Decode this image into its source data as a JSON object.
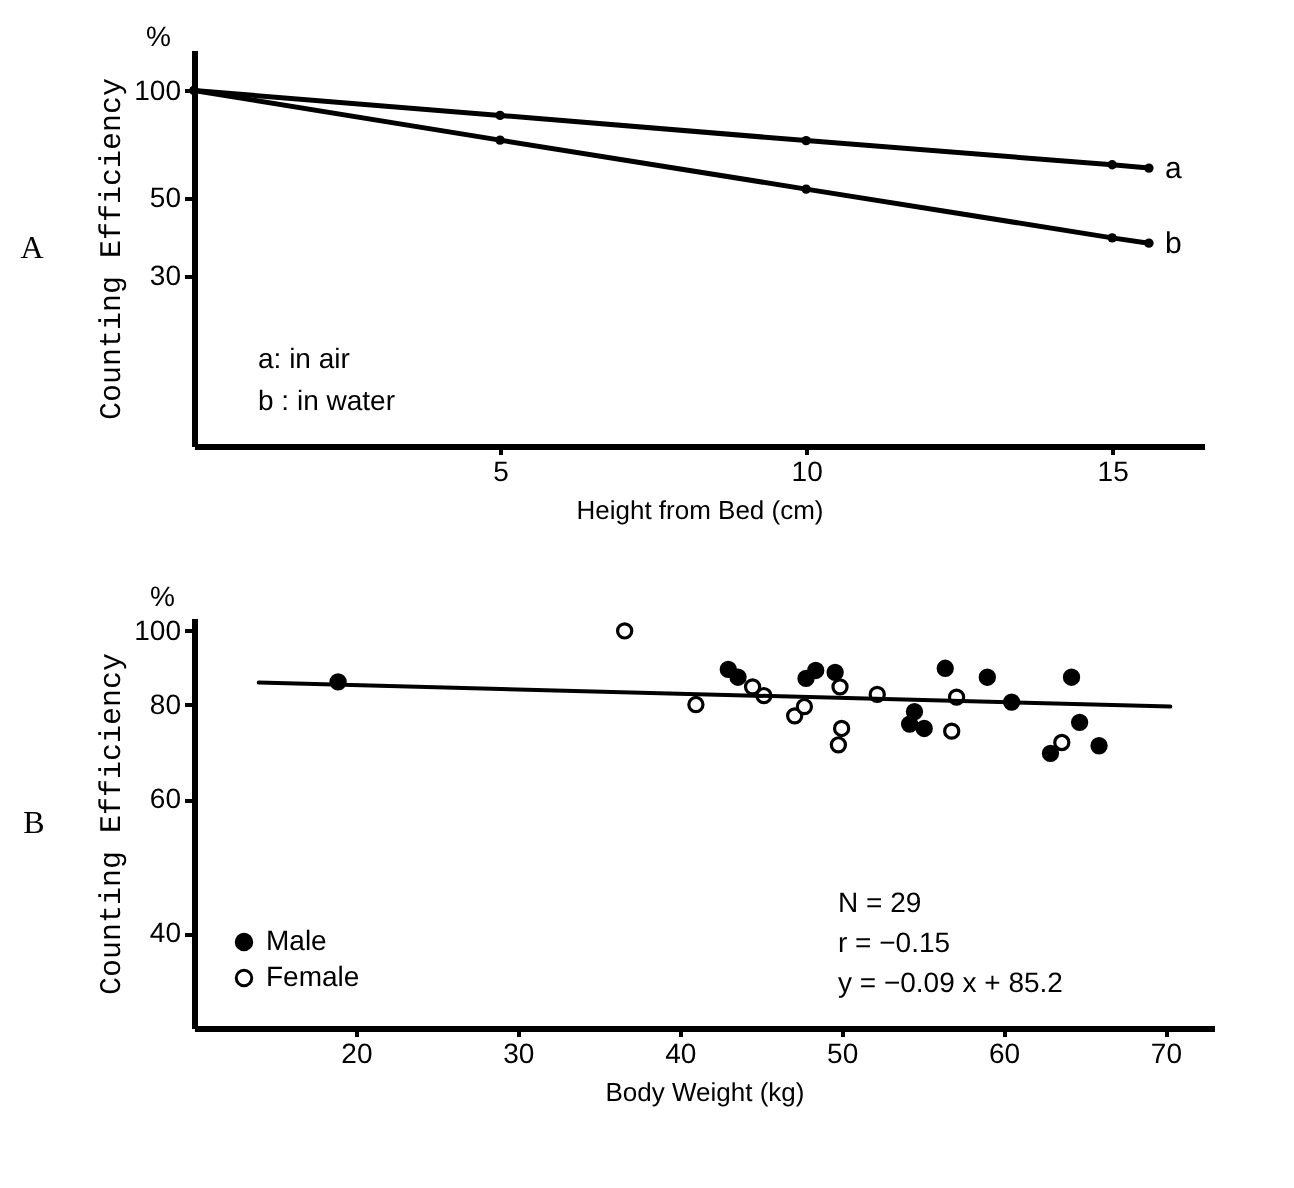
{
  "chart_data": [
    {
      "type": "line",
      "title": "A",
      "xlabel": "Height from Bed (cm)",
      "ylabel": "Counting Efficiency",
      "log": true,
      "marker": "circle",
      "xlim": [
        0,
        16.5
      ],
      "xticks": [
        5,
        10,
        15
      ],
      "ylim": [
        10,
        130
      ],
      "yticks": [
        30,
        50,
        100
      ],
      "annotations": [
        "%",
        "a: in air",
        "b : in water"
      ],
      "series": [
        {
          "name": "a",
          "color": "#000000",
          "x": [
            0,
            5,
            10,
            15,
            15.6
          ],
          "values": [
            100,
            85.1,
            72.3,
            61.8,
            60.5
          ]
        },
        {
          "name": "b",
          "color": "#000000",
          "x": [
            0,
            5,
            10,
            15,
            15.6
          ],
          "values": [
            100,
            72.5,
            52.8,
            38.5,
            37.2
          ]
        }
      ]
    },
    {
      "type": "scatter",
      "title": "B",
      "xlabel": "Body Weight (kg)",
      "ylabel": "Counting Efficiency",
      "log": true,
      "marker": "circle",
      "legend": "bottom left",
      "xlim": [
        10,
        73
      ],
      "xticks": [
        20,
        30,
        40,
        50,
        60,
        70
      ],
      "ylim": [
        30,
        104
      ],
      "yticks": [
        40,
        60,
        80,
        100
      ],
      "annotations": [
        "%",
        "N = 29",
        "r = −0.15",
        "y = −0.09 x + 85.2"
      ],
      "series": [
        {
          "name": "Male",
          "color": "#000000",
          "x": [
            18.9,
            43.0,
            43.6,
            47.8,
            48.4,
            49.6,
            54.5,
            54.2,
            55.1,
            56.4,
            59.0,
            60.5,
            64.2,
            64.7,
            65.9,
            62.9
          ],
          "values": [
            85.7,
            89.0,
            86.9,
            86.6,
            88.7,
            88.2,
            78.3,
            75.4,
            74.4,
            89.3,
            86.9,
            80.6,
            86.9,
            75.8,
            70.6,
            69.0
          ]
        },
        {
          "name": "Female",
          "color": "#ffffff",
          "x": [
            36.6,
            41.0,
            44.5,
            45.2,
            47.1,
            47.7,
            49.9,
            50.0,
            49.8,
            52.2,
            57.1,
            56.8,
            63.6
          ],
          "values": [
            100,
            80,
            84.4,
            82.2,
            77.3,
            79.5,
            84.4,
            74.4,
            70.8,
            82.5,
            81.8,
            73.8,
            71.3
          ]
        },
        {
          "type": "line",
          "marker": "none",
          "color": "#000000",
          "x": [
            14,
            70.3
          ],
          "values": [
            85.5,
            79.5
          ]
        }
      ]
    }
  ]
}
